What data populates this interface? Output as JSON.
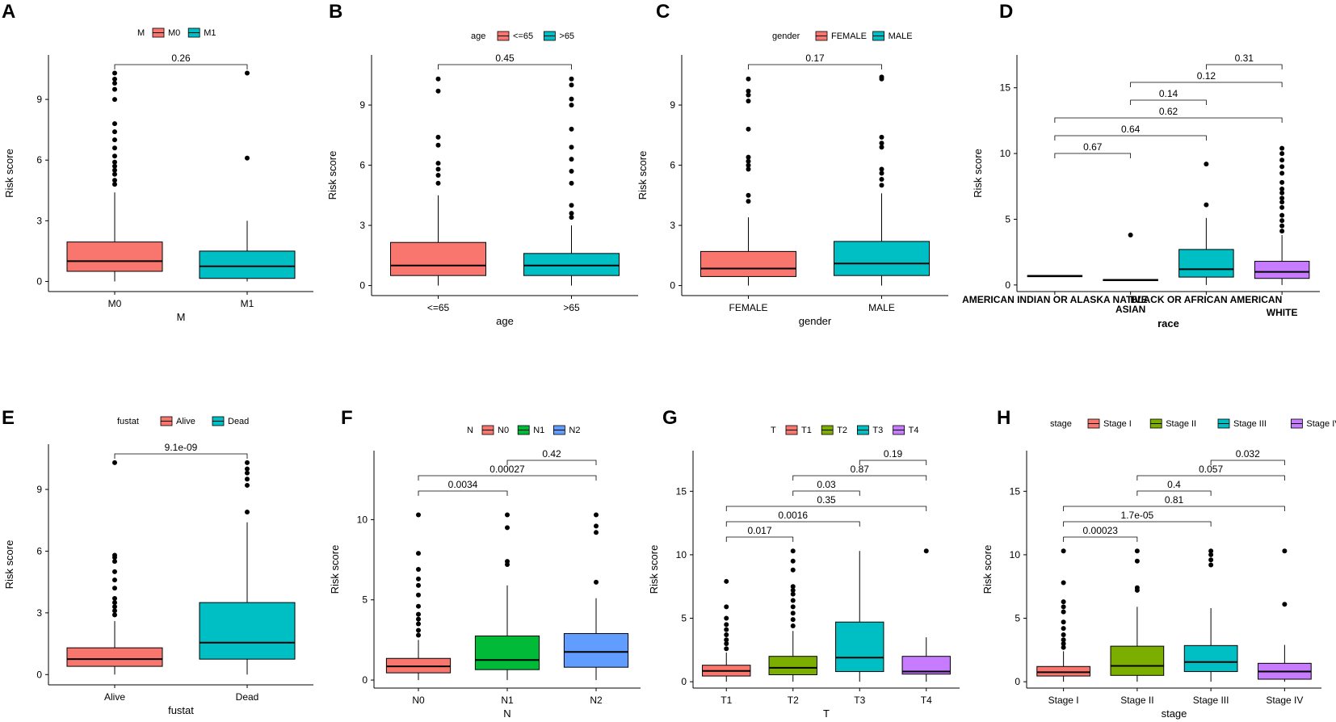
{
  "figure": {
    "panels_order": [
      "A",
      "B",
      "C",
      "D",
      "E",
      "F",
      "G",
      "H"
    ]
  },
  "chart_data": [
    {
      "type": "box",
      "panel_label": "A",
      "legend_title": "M",
      "xlabel": "M",
      "ylabel": "Risk score",
      "categories": [
        "M0",
        "M1"
      ],
      "colors": [
        "#F8766D",
        "#00BFC4"
      ],
      "ylim": [
        -0.5,
        11.2
      ],
      "yticks": [
        0,
        3,
        6,
        9
      ],
      "ytick_labels": [
        "0",
        "3",
        "6",
        "9"
      ],
      "boxes": [
        {
          "q1": 0.5,
          "median": 1.0,
          "q3": 1.95,
          "lower": 0.0,
          "upper": 4.4,
          "outliers": [
            4.8,
            5.0,
            5.3,
            5.5,
            5.7,
            5.9,
            6.2,
            6.6,
            7.0,
            7.4,
            7.8,
            9.0,
            9.5,
            9.8,
            10.0,
            10.3
          ]
        },
        {
          "q1": 0.15,
          "median": 0.75,
          "q3": 1.5,
          "lower": 0.0,
          "upper": 3.0,
          "outliers": [
            6.1,
            10.3
          ]
        }
      ],
      "comparisons": [
        {
          "from": 0,
          "to": 1,
          "label": "0.26"
        }
      ]
    },
    {
      "type": "box",
      "panel_label": "B",
      "legend_title": "age",
      "xlabel": "age",
      "ylabel": "Risk score",
      "categories": [
        "<=65",
        ">65"
      ],
      "colors": [
        "#F8766D",
        "#00BFC4"
      ],
      "ylim": [
        -0.5,
        11.5
      ],
      "yticks": [
        0,
        3,
        6,
        9
      ],
      "ytick_labels": [
        "0",
        "3",
        "6",
        "9"
      ],
      "boxes": [
        {
          "q1": 0.5,
          "median": 1.0,
          "q3": 2.15,
          "lower": 0.0,
          "upper": 4.5,
          "outliers": [
            5.1,
            5.5,
            5.8,
            6.1,
            7.0,
            7.4,
            9.7,
            10.3
          ]
        },
        {
          "q1": 0.5,
          "median": 1.0,
          "q3": 1.6,
          "lower": 0.0,
          "upper": 3.0,
          "outliers": [
            3.4,
            3.6,
            4.0,
            5.1,
            5.7,
            6.3,
            6.9,
            7.8,
            9.0,
            9.3,
            10.0,
            10.3
          ]
        }
      ],
      "comparisons": [
        {
          "from": 0,
          "to": 1,
          "label": "0.45"
        }
      ]
    },
    {
      "type": "box",
      "panel_label": "C",
      "legend_title": "gender",
      "xlabel": "gender",
      "ylabel": "Risk score",
      "categories": [
        "FEMALE",
        "MALE"
      ],
      "colors": [
        "#F8766D",
        "#00BFC4"
      ],
      "ylim": [
        -0.5,
        11.5
      ],
      "yticks": [
        0,
        3,
        6,
        9
      ],
      "ytick_labels": [
        "0",
        "3",
        "6",
        "9"
      ],
      "boxes": [
        {
          "q1": 0.45,
          "median": 0.85,
          "q3": 1.7,
          "lower": 0.0,
          "upper": 3.4,
          "outliers": [
            4.2,
            4.5,
            5.8,
            6.0,
            6.2,
            6.4,
            7.8,
            9.2,
            9.5,
            9.7,
            10.3
          ]
        },
        {
          "q1": 0.5,
          "median": 1.1,
          "q3": 2.2,
          "lower": 0.0,
          "upper": 4.6,
          "outliers": [
            5.0,
            5.3,
            5.6,
            5.8,
            6.9,
            7.1,
            7.4,
            10.3,
            10.4
          ]
        }
      ],
      "comparisons": [
        {
          "from": 0,
          "to": 1,
          "label": "0.17"
        }
      ]
    },
    {
      "type": "box",
      "panel_label": "D",
      "legend_title": "",
      "xlabel": "race",
      "ylabel": "Risk score",
      "categories": [
        "AMERICAN INDIAN OR ALASKA NATIVE",
        "ASIAN",
        "BLACK OR AFRICAN AMERICAN",
        "WHITE"
      ],
      "colors": [
        "#F8766D",
        "#7CAE00",
        "#00BFC4",
        "#C77CFF"
      ],
      "ylim": [
        -0.5,
        17.5
      ],
      "yticks": [
        0,
        5,
        10,
        15
      ],
      "ytick_labels": [
        "0",
        "5",
        "10",
        "15"
      ],
      "boxes": [
        {
          "q1": 0.68,
          "median": 0.7,
          "q3": 0.72,
          "lower": 0.68,
          "upper": 0.72,
          "outliers": []
        },
        {
          "q1": 0.35,
          "median": 0.38,
          "q3": 0.42,
          "lower": 0.35,
          "upper": 0.42,
          "outliers": [
            3.8
          ]
        },
        {
          "q1": 0.6,
          "median": 1.2,
          "q3": 2.7,
          "lower": 0.0,
          "upper": 5.1,
          "outliers": [
            6.1,
            9.2
          ]
        },
        {
          "q1": 0.5,
          "median": 1.0,
          "q3": 1.8,
          "lower": 0.0,
          "upper": 3.8,
          "outliers": [
            4.1,
            4.5,
            4.9,
            5.3,
            5.9,
            6.3,
            6.6,
            7.0,
            7.3,
            7.8,
            8.5,
            9.0,
            9.5,
            10.0,
            10.4
          ]
        }
      ],
      "comparisons": [
        {
          "from": 0,
          "to": 1,
          "label": "0.67"
        },
        {
          "from": 0,
          "to": 2,
          "label": "0.64"
        },
        {
          "from": 0,
          "to": 3,
          "label": "0.62"
        },
        {
          "from": 1,
          "to": 2,
          "label": "0.14"
        },
        {
          "from": 1,
          "to": 3,
          "label": "0.12"
        },
        {
          "from": 2,
          "to": 3,
          "label": "0.31"
        }
      ]
    },
    {
      "type": "box",
      "panel_label": "E",
      "legend_title": "fustat",
      "xlabel": "fustat",
      "ylabel": "Risk score",
      "categories": [
        "Alive",
        "Dead"
      ],
      "colors": [
        "#F8766D",
        "#00BFC4"
      ],
      "ylim": [
        -0.5,
        11.2
      ],
      "yticks": [
        0,
        3,
        6,
        9
      ],
      "ytick_labels": [
        "0",
        "3",
        "6",
        "9"
      ],
      "boxes": [
        {
          "q1": 0.4,
          "median": 0.75,
          "q3": 1.3,
          "lower": 0.0,
          "upper": 2.6,
          "outliers": [
            2.9,
            3.1,
            3.3,
            3.5,
            3.7,
            4.2,
            4.6,
            5.0,
            5.5,
            5.7,
            5.8,
            10.3
          ]
        },
        {
          "q1": 0.75,
          "median": 1.55,
          "q3": 3.5,
          "lower": 0.0,
          "upper": 7.4,
          "outliers": [
            7.9,
            9.2,
            9.5,
            9.8,
            10.0,
            10.3
          ]
        }
      ],
      "comparisons": [
        {
          "from": 0,
          "to": 1,
          "label": "9.1e-09"
        }
      ]
    },
    {
      "type": "box",
      "panel_label": "F",
      "legend_title": "N",
      "xlabel": "N",
      "ylabel": "Risk score",
      "categories": [
        "N0",
        "N1",
        "N2"
      ],
      "colors": [
        "#F8766D",
        "#00BA38",
        "#619CFF"
      ],
      "ylim": [
        -0.5,
        14.3
      ],
      "yticks": [
        0,
        5,
        10
      ],
      "ytick_labels": [
        "0",
        "5",
        "10"
      ],
      "boxes": [
        {
          "q1": 0.45,
          "median": 0.85,
          "q3": 1.35,
          "lower": 0.0,
          "upper": 2.5,
          "outliers": [
            2.8,
            3.1,
            3.5,
            3.8,
            4.1,
            4.6,
            5.3,
            5.9,
            6.3,
            6.9,
            7.9,
            10.3
          ]
        },
        {
          "q1": 0.65,
          "median": 1.25,
          "q3": 2.75,
          "lower": 0.0,
          "upper": 5.9,
          "outliers": [
            7.2,
            7.4,
            9.5,
            10.3
          ]
        },
        {
          "q1": 0.8,
          "median": 1.75,
          "q3": 2.9,
          "lower": 0.0,
          "upper": 5.1,
          "outliers": [
            6.1,
            9.2,
            9.6,
            10.3
          ]
        }
      ],
      "comparisons": [
        {
          "from": 0,
          "to": 1,
          "label": "0.0034"
        },
        {
          "from": 0,
          "to": 2,
          "label": "0.00027"
        },
        {
          "from": 1,
          "to": 2,
          "label": "0.42"
        }
      ]
    },
    {
      "type": "box",
      "panel_label": "G",
      "legend_title": "T",
      "xlabel": "T",
      "ylabel": "Risk score",
      "categories": [
        "T1",
        "T2",
        "T3",
        "T4"
      ],
      "colors": [
        "#F8766D",
        "#7CAE00",
        "#00BFC4",
        "#C77CFF"
      ],
      "ylim": [
        -0.5,
        18.2
      ],
      "yticks": [
        0,
        5,
        10,
        15
      ],
      "ytick_labels": [
        "0",
        "5",
        "10",
        "15"
      ],
      "boxes": [
        {
          "q1": 0.45,
          "median": 0.85,
          "q3": 1.3,
          "lower": 0.0,
          "upper": 2.3,
          "outliers": [
            2.6,
            3.0,
            3.3,
            3.7,
            4.1,
            4.5,
            5.0,
            5.9,
            7.9
          ]
        },
        {
          "q1": 0.55,
          "median": 1.1,
          "q3": 2.0,
          "lower": 0.0,
          "upper": 4.0,
          "outliers": [
            4.4,
            4.9,
            5.4,
            5.9,
            6.4,
            6.9,
            7.2,
            7.5,
            8.8,
            9.5,
            10.3
          ]
        },
        {
          "q1": 0.8,
          "median": 1.9,
          "q3": 4.7,
          "lower": 0.0,
          "upper": 10.3,
          "outliers": []
        },
        {
          "q1": 0.6,
          "median": 0.8,
          "q3": 2.0,
          "lower": 0.0,
          "upper": 3.5,
          "outliers": [
            10.3
          ]
        }
      ],
      "comparisons": [
        {
          "from": 0,
          "to": 1,
          "label": "0.017"
        },
        {
          "from": 0,
          "to": 2,
          "label": "0.0016"
        },
        {
          "from": 0,
          "to": 3,
          "label": "0.35"
        },
        {
          "from": 1,
          "to": 2,
          "label": "0.03"
        },
        {
          "from": 1,
          "to": 3,
          "label": "0.87"
        },
        {
          "from": 2,
          "to": 3,
          "label": "0.19"
        }
      ]
    },
    {
      "type": "box",
      "panel_label": "H",
      "legend_title": "stage",
      "xlabel": "stage",
      "ylabel": "Risk score",
      "categories": [
        "Stage I",
        "Stage II",
        "Stage III",
        "Stage IV"
      ],
      "colors": [
        "#F8766D",
        "#7CAE00",
        "#00BFC4",
        "#C77CFF"
      ],
      "ylim": [
        -0.5,
        18.2
      ],
      "yticks": [
        0,
        5,
        10,
        15
      ],
      "ytick_labels": [
        "0",
        "5",
        "10",
        "15"
      ],
      "boxes": [
        {
          "q1": 0.45,
          "median": 0.75,
          "q3": 1.2,
          "lower": 0.0,
          "upper": 2.4,
          "outliers": [
            2.7,
            3.0,
            3.3,
            3.7,
            4.2,
            4.7,
            5.5,
            5.9,
            6.3,
            7.8,
            10.3
          ]
        },
        {
          "q1": 0.5,
          "median": 1.25,
          "q3": 2.8,
          "lower": 0.0,
          "upper": 5.9,
          "outliers": [
            7.2,
            7.4,
            9.5,
            10.3
          ]
        },
        {
          "q1": 0.8,
          "median": 1.55,
          "q3": 2.85,
          "lower": 0.0,
          "upper": 5.8,
          "outliers": [
            9.2,
            9.6,
            10.0,
            10.3
          ]
        },
        {
          "q1": 0.2,
          "median": 0.8,
          "q3": 1.45,
          "lower": 0.0,
          "upper": 2.9,
          "outliers": [
            6.1,
            10.3
          ]
        }
      ],
      "comparisons": [
        {
          "from": 0,
          "to": 1,
          "label": "0.00023"
        },
        {
          "from": 0,
          "to": 2,
          "label": "1.7e-05"
        },
        {
          "from": 0,
          "to": 3,
          "label": "0.81"
        },
        {
          "from": 1,
          "to": 2,
          "label": "0.4"
        },
        {
          "from": 1,
          "to": 3,
          "label": "0.057"
        },
        {
          "from": 2,
          "to": 3,
          "label": "0.032"
        }
      ]
    }
  ]
}
